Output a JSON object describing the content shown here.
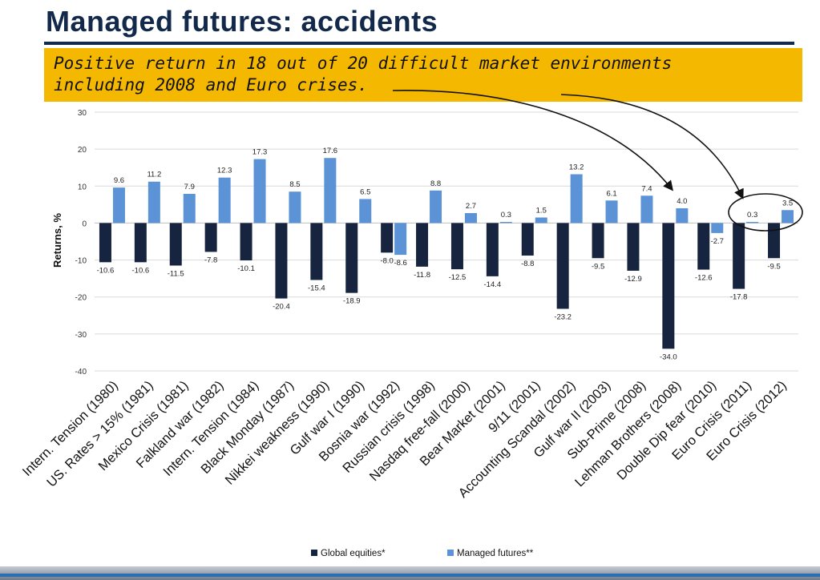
{
  "slide": {
    "title": "Managed futures: accidents",
    "callout_line1": "Positive return in 18 out of 20 difficult market environments",
    "callout_line2": "including 2008 and Euro crises."
  },
  "colors": {
    "title": "#13294b",
    "callout_bg": "#f5b800",
    "global_equities": "#16243f",
    "managed_futures": "#5b93d6",
    "gridline": "#d9d9d9"
  },
  "chart_data": {
    "type": "bar",
    "title": "",
    "xlabel": "",
    "ylabel": "Returns, %",
    "ylim": [
      -40,
      30
    ],
    "yticks": [
      -40,
      -30,
      -20,
      -10,
      0,
      10,
      20,
      30
    ],
    "grid": true,
    "legend_position": "bottom-center",
    "categories": [
      "Intern. Tension (1980)",
      "US. Rates > 15% (1981)",
      "Mexico Crisis (1981)",
      "Falkland war (1982)",
      "Intern. Tension (1984)",
      "Black Monday (1987)",
      "Nikkei weakness (1990)",
      "Gulf war I (1990)",
      "Bosnia war (1992)",
      "Russian crisis (1998)",
      "Nasdaq free-fall (2000)",
      "Bear Market (2001)",
      "9/11 (2001)",
      "Accounting Scandal (2002)",
      "Gulf war II (2003)",
      "Sub-Prime (2008)",
      "Lehman Brothers (2008)",
      "Double Dip fear (2010)",
      "Euro Crisis (2011)",
      "Euro Crisis (2012)"
    ],
    "series": [
      {
        "name": "Global equities*",
        "values": [
          -10.6,
          -10.6,
          -11.5,
          -7.8,
          -10.1,
          -20.4,
          -15.4,
          -18.9,
          -8.0,
          -11.8,
          -12.5,
          -14.4,
          -8.8,
          -23.2,
          -9.5,
          -12.9,
          -34.0,
          -12.6,
          -17.8,
          -9.5
        ],
        "labels": [
          "-10.6",
          "-10.6",
          "-11.5",
          "-7.8",
          "-10.1",
          "-20.4",
          "-15.4",
          "-18.9",
          "-8.0",
          "-11.8",
          "-12.5",
          "-14.4",
          "-8.8",
          "-23.2",
          "-9.5",
          "-12.9",
          "-34.0",
          "-12.6",
          "-17.8",
          "-9.5"
        ]
      },
      {
        "name": "Managed futures**",
        "values": [
          9.6,
          11.2,
          7.9,
          12.3,
          17.3,
          8.5,
          17.6,
          6.5,
          -8.6,
          8.8,
          2.7,
          0.3,
          1.5,
          13.2,
          6.1,
          7.4,
          4.0,
          -2.7,
          0.3,
          3.5
        ],
        "labels": [
          "9.6",
          "11.2",
          "7.9",
          "12.3",
          "17.3",
          "8.5",
          "17.6",
          "6.5",
          "-8.6",
          "8.8",
          "2.7",
          "0.3",
          "1.5",
          "13.2",
          "6.1",
          "7.4",
          "4.0",
          "-2.7",
          "0.3",
          "3.5"
        ]
      }
    ]
  }
}
